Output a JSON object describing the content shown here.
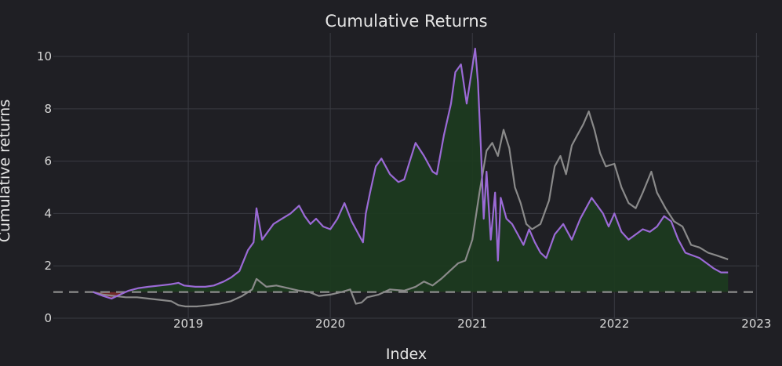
{
  "chart_data": {
    "type": "line",
    "title": "Cumulative Returns",
    "xlabel": "Index",
    "ylabel": "Cumulative returns",
    "xlim": [
      2018.05,
      2023.02
    ],
    "ylim": [
      0,
      10.9
    ],
    "x_ticks": [
      2019,
      2020,
      2021,
      2022,
      2023
    ],
    "x_tick_labels": [
      "2019",
      "2020",
      "2021",
      "2022",
      "2023"
    ],
    "y_ticks": [
      0,
      2,
      4,
      6,
      8,
      10
    ],
    "y_tick_labels": [
      "0",
      "2",
      "4",
      "6",
      "8",
      "10"
    ],
    "grid": true,
    "baseline": 1,
    "colors": {
      "background": "#1f1f24",
      "grid": "#3a3b42",
      "strategy": "#9b6ad6",
      "benchmark": "#8a8a8a",
      "fill_above": "#1c3a20",
      "fill_below": "#7a2a2a",
      "baseline": "#8c8c8c"
    },
    "series": [
      {
        "role": "strategy",
        "x": [
          2018.33,
          2018.4,
          2018.46,
          2018.52,
          2018.58,
          2018.65,
          2018.72,
          2018.8,
          2018.88,
          2018.93,
          2018.97,
          2019.05,
          2019.12,
          2019.18,
          2019.25,
          2019.3,
          2019.36,
          2019.42,
          2019.46,
          2019.48,
          2019.52,
          2019.56,
          2019.6,
          2019.66,
          2019.72,
          2019.78,
          2019.82,
          2019.86,
          2019.9,
          2019.95,
          2020.0,
          2020.05,
          2020.1,
          2020.15,
          2020.2,
          2020.23,
          2020.25,
          2020.28,
          2020.32,
          2020.36,
          2020.42,
          2020.48,
          2020.52,
          2020.56,
          2020.6,
          2020.66,
          2020.72,
          2020.75,
          2020.8,
          2020.85,
          2020.88,
          2020.92,
          2020.96,
          2021.0,
          2021.02,
          2021.04,
          2021.06,
          2021.08,
          2021.1,
          2021.13,
          2021.16,
          2021.18,
          2021.2,
          2021.24,
          2021.28,
          2021.32,
          2021.36,
          2021.4,
          2021.44,
          2021.48,
          2021.52,
          2021.58,
          2021.64,
          2021.7,
          2021.76,
          2021.8,
          2021.84,
          2021.88,
          2021.92,
          2021.96,
          2022.0,
          2022.05,
          2022.1,
          2022.15,
          2022.2,
          2022.25,
          2022.3,
          2022.35,
          2022.4,
          2022.45,
          2022.5,
          2022.55,
          2022.6,
          2022.65,
          2022.7,
          2022.75,
          2022.8
        ],
        "y": [
          1.0,
          0.85,
          0.75,
          0.9,
          1.05,
          1.15,
          1.2,
          1.25,
          1.3,
          1.35,
          1.25,
          1.2,
          1.2,
          1.25,
          1.4,
          1.55,
          1.8,
          2.6,
          2.9,
          4.2,
          3.0,
          3.3,
          3.6,
          3.8,
          4.0,
          4.3,
          3.9,
          3.6,
          3.8,
          3.5,
          3.4,
          3.8,
          4.4,
          3.7,
          3.2,
          2.9,
          4.0,
          4.8,
          5.8,
          6.1,
          5.5,
          5.2,
          5.3,
          6.0,
          6.7,
          6.2,
          5.6,
          5.5,
          7.0,
          8.2,
          9.4,
          9.7,
          8.2,
          9.6,
          10.3,
          9.0,
          6.5,
          3.8,
          5.6,
          3.0,
          4.8,
          2.2,
          4.6,
          3.8,
          3.6,
          3.2,
          2.8,
          3.4,
          2.9,
          2.5,
          2.3,
          3.2,
          3.6,
          3.0,
          3.8,
          4.2,
          4.6,
          4.3,
          4.0,
          3.5,
          4.0,
          3.3,
          3.0,
          3.2,
          3.4,
          3.3,
          3.5,
          3.9,
          3.7,
          3.0,
          2.5,
          2.4,
          2.3,
          2.1,
          1.9,
          1.75,
          1.75
        ]
      },
      {
        "role": "benchmark",
        "x": [
          2018.33,
          2018.4,
          2018.48,
          2018.56,
          2018.64,
          2018.72,
          2018.8,
          2018.88,
          2018.93,
          2018.98,
          2019.06,
          2019.15,
          2019.22,
          2019.3,
          2019.38,
          2019.45,
          2019.48,
          2019.55,
          2019.62,
          2019.7,
          2019.78,
          2019.85,
          2019.92,
          2020.0,
          2020.08,
          2020.14,
          2020.18,
          2020.22,
          2020.26,
          2020.34,
          2020.42,
          2020.52,
          2020.6,
          2020.66,
          2020.72,
          2020.78,
          2020.84,
          2020.9,
          2020.95,
          2021.0,
          2021.05,
          2021.1,
          2021.14,
          2021.18,
          2021.22,
          2021.26,
          2021.3,
          2021.34,
          2021.38,
          2021.42,
          2021.48,
          2021.54,
          2021.58,
          2021.62,
          2021.66,
          2021.7,
          2021.74,
          2021.78,
          2021.82,
          2021.86,
          2021.9,
          2021.94,
          2022.0,
          2022.05,
          2022.1,
          2022.15,
          2022.2,
          2022.26,
          2022.3,
          2022.36,
          2022.42,
          2022.48,
          2022.54,
          2022.6,
          2022.66,
          2022.72,
          2022.8
        ],
        "y": [
          1.0,
          0.9,
          0.85,
          0.8,
          0.8,
          0.75,
          0.7,
          0.65,
          0.5,
          0.45,
          0.45,
          0.5,
          0.55,
          0.65,
          0.85,
          1.1,
          1.5,
          1.2,
          1.25,
          1.15,
          1.05,
          1.0,
          0.85,
          0.9,
          1.0,
          1.1,
          0.55,
          0.6,
          0.8,
          0.9,
          1.1,
          1.05,
          1.2,
          1.4,
          1.25,
          1.5,
          1.8,
          2.1,
          2.2,
          3.0,
          4.8,
          6.4,
          6.7,
          6.2,
          7.2,
          6.5,
          5.0,
          4.4,
          3.6,
          3.4,
          3.6,
          4.5,
          5.8,
          6.2,
          5.5,
          6.6,
          7.0,
          7.4,
          7.9,
          7.2,
          6.3,
          5.8,
          5.9,
          5.0,
          4.4,
          4.2,
          4.8,
          5.6,
          4.8,
          4.2,
          3.7,
          3.5,
          2.8,
          2.7,
          2.5,
          2.4,
          2.25
        ]
      }
    ]
  }
}
